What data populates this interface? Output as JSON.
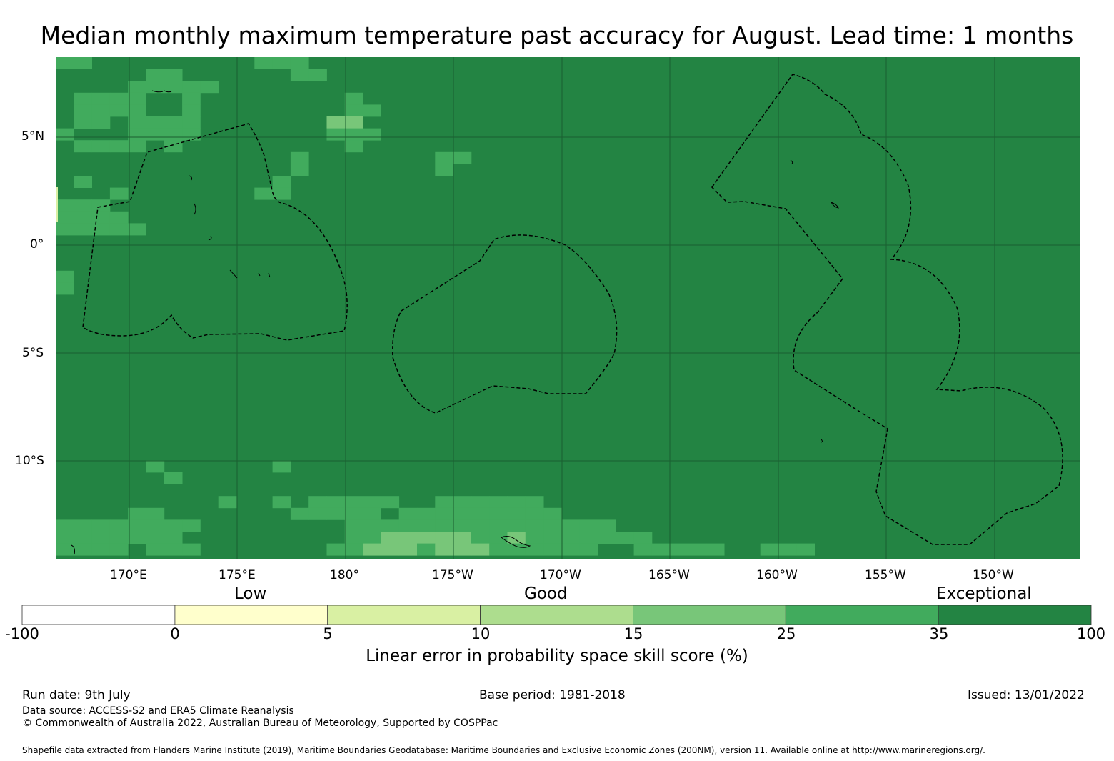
{
  "title": "Median monthly maximum temperature past accuracy for August. Lead time: 1 months",
  "axes": {
    "lon_labels": [
      "170°E",
      "175°E",
      "180°",
      "175°W",
      "170°W",
      "165°W",
      "160°W",
      "155°W",
      "150°W"
    ],
    "lat_labels": [
      "5°N",
      "0°",
      "5°S",
      "10°S"
    ]
  },
  "colorbar": {
    "categories": [
      "Low",
      "Good",
      "Exceptional"
    ],
    "ticks": [
      "-100",
      "0",
      "5",
      "10",
      "15",
      "25",
      "35",
      "100"
    ],
    "colors": [
      "#ffffff",
      "#ffffcc",
      "#d9f0a3",
      "#addd8e",
      "#78c679",
      "#41ab5d",
      "#238443"
    ],
    "label": "Linear error in probability space skill score (%)"
  },
  "map_colors": {
    "base": "#238443",
    "cell_25_35": "#41ab5d",
    "cell_15_25": "#78c679",
    "cell_5_10": "#d9f0a3",
    "coastline": "#000000",
    "eez_boundary": "#000000"
  },
  "footer": {
    "run_date": "Run date: 9th July",
    "base_period": "Base period: 1981-2018",
    "issued": "Issued: 13/01/2022",
    "data_source": "Data source: ACCESS-S2 and ERA5 Climate Reanalysis",
    "copyright": "© Commonwealth of Australia 2022, Australian Bureau of Meteorology, Supported by COSPPac",
    "shapefile": "Shapefile data extracted from Flanders Marine Institute (2019), Maritime Boundaries Geodatabase: Maritime Boundaries and Exclusive Economic Zones (200NM), version 11. Available online at http://www.marineregions.org/."
  }
}
